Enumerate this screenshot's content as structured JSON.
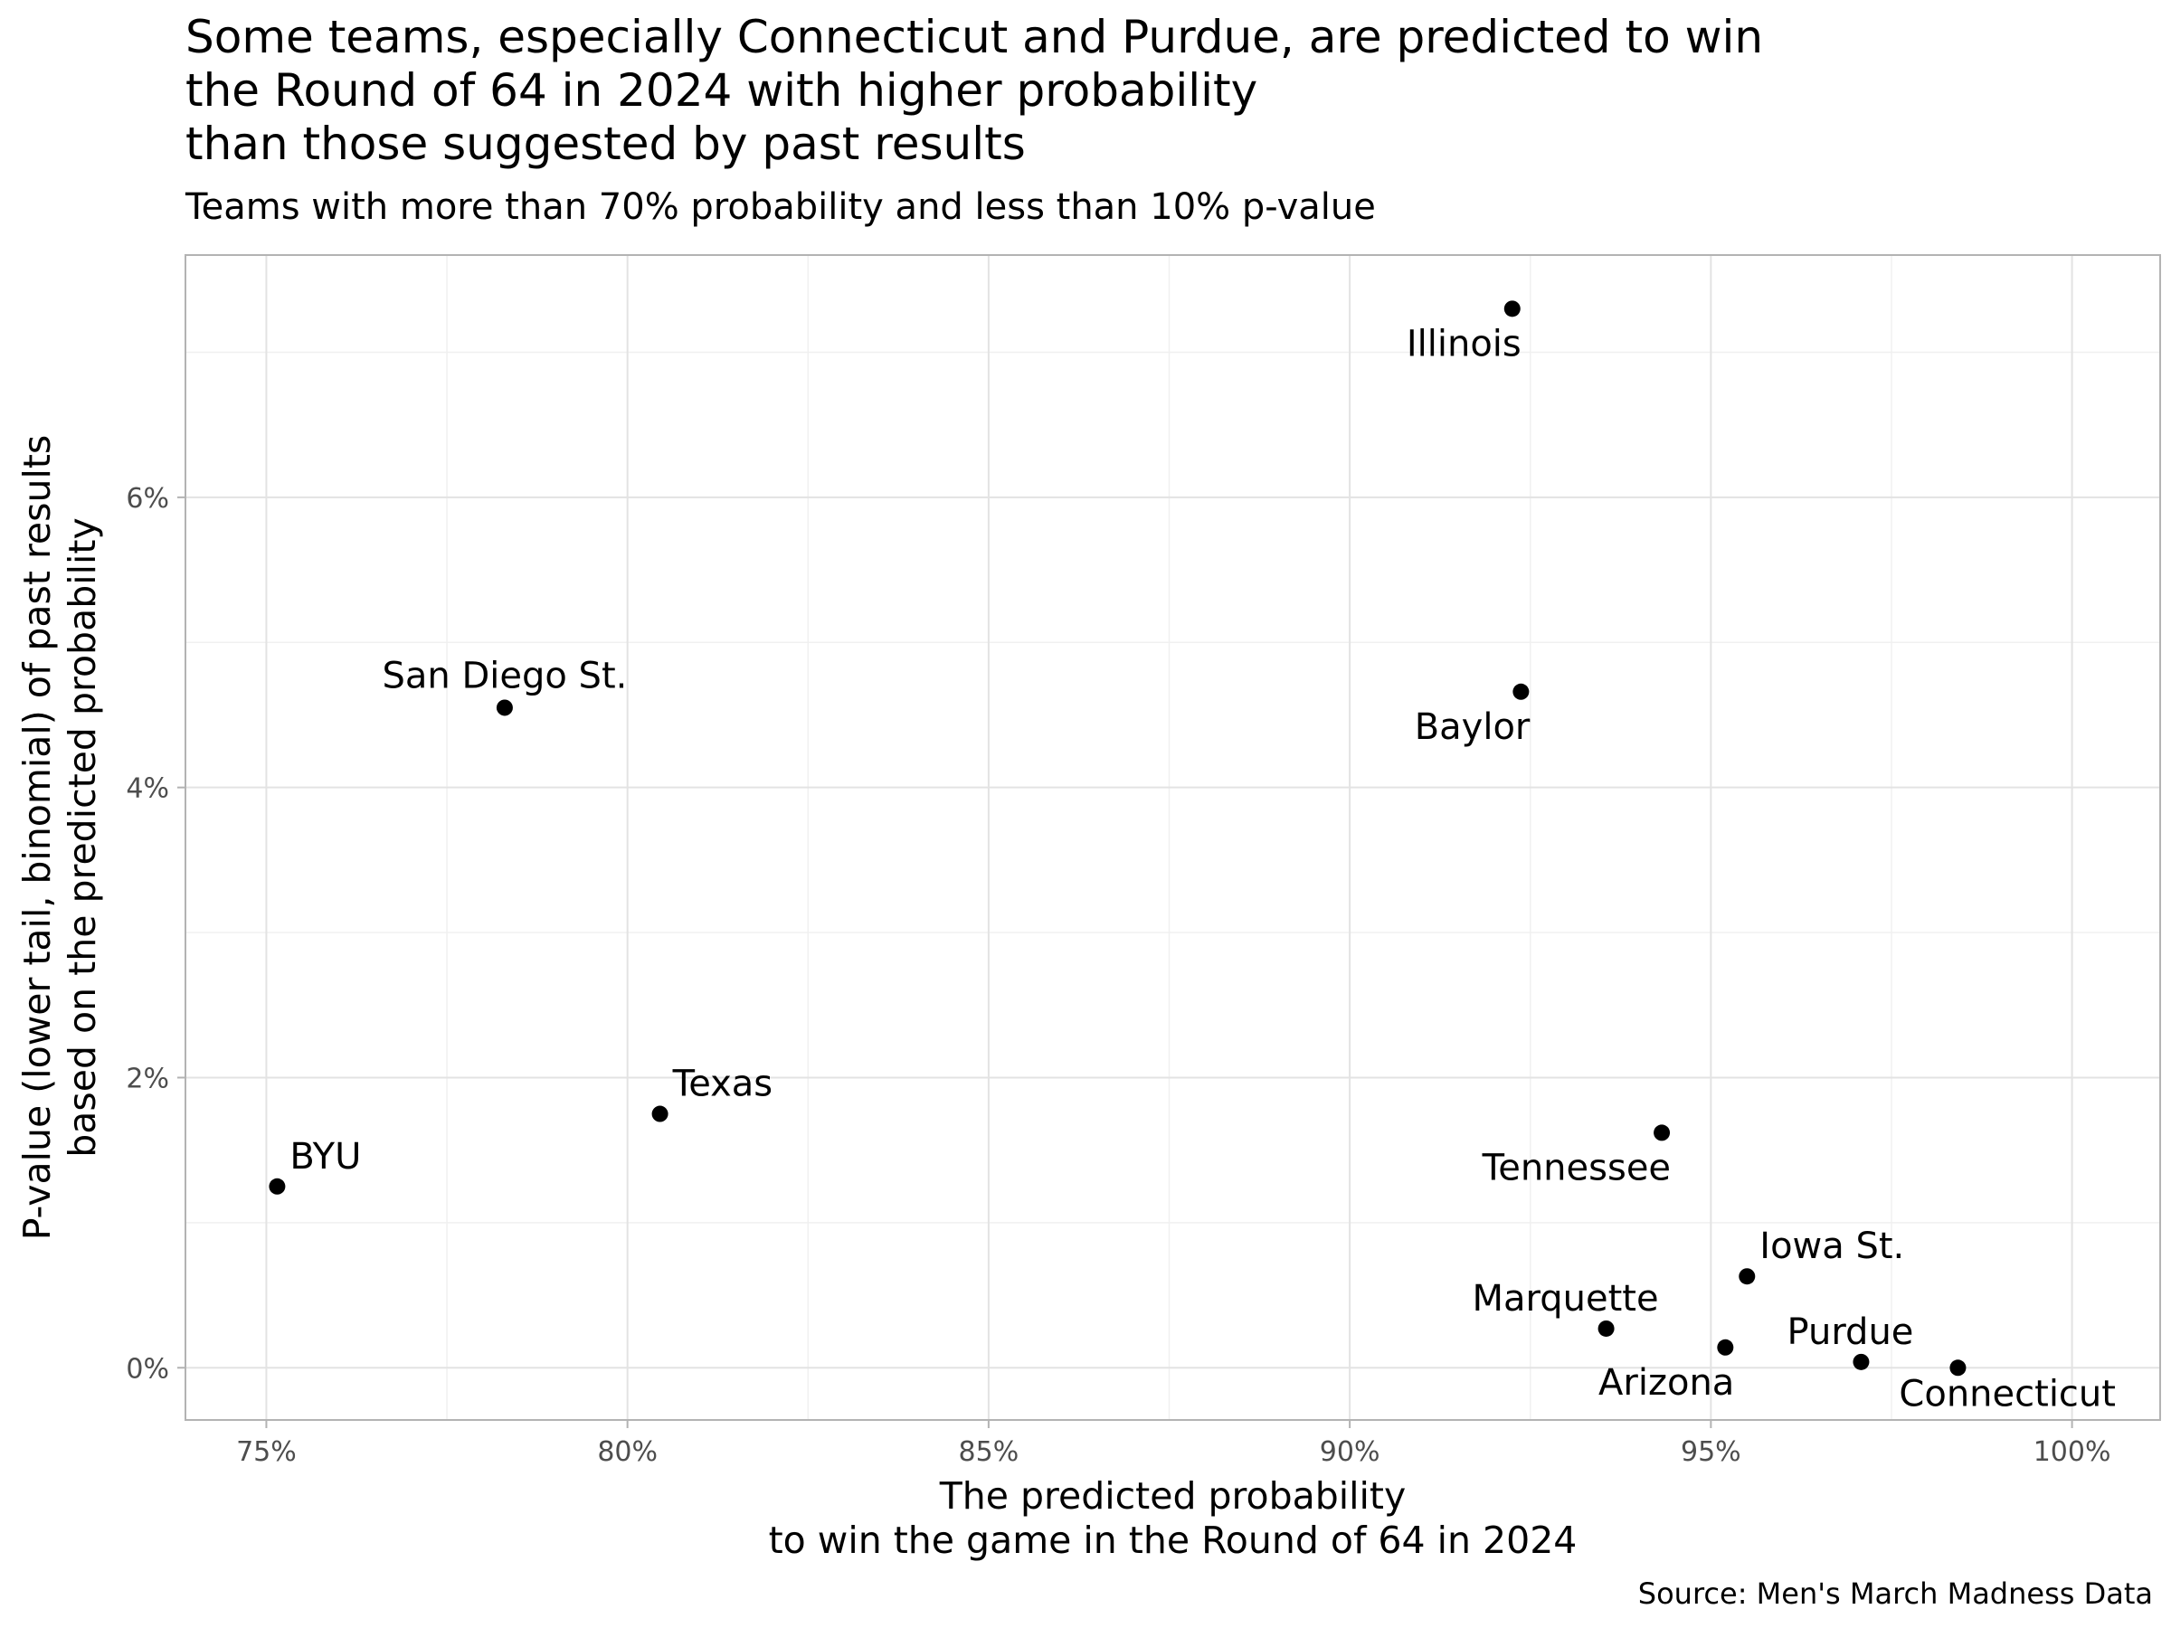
{
  "title": "Some teams, especially Connecticut and Purdue, are predicted to win\nthe Round of 64 in 2024 with higher probability\nthan those suggested by past results",
  "subtitle": "Teams with more than 70% probability and less than 10% p-value",
  "caption": "Source: Men's March Madness Data",
  "colors": {
    "point": "#000000",
    "grid_major": "#e3e3e3",
    "grid_minor": "#f0f0f0",
    "panel_border": "#b3b3b3",
    "tick_label": "#4d4d4d"
  },
  "chart_data": {
    "type": "scatter",
    "xlabel": [
      "The predicted probability",
      "to win the game in the Round of 64 in 2024"
    ],
    "ylabel": [
      "P-value (lower tail, binomial) of past results",
      "based on the predicted probability"
    ],
    "xlim": [
      0.7388,
      1.0122
    ],
    "ylim": [
      -0.0036,
      0.0767
    ],
    "x_ticks": [
      0.75,
      0.8,
      0.85,
      0.9,
      0.95,
      1.0
    ],
    "x_tick_labels": [
      "75%",
      "80%",
      "85%",
      "90%",
      "95%",
      "100%"
    ],
    "y_ticks": [
      0.0,
      0.02,
      0.04,
      0.06
    ],
    "y_tick_labels": [
      "0%",
      "2%",
      "4%",
      "6%"
    ],
    "grid": true,
    "points": [
      {
        "label": "Illinois",
        "x": 0.9225,
        "y": 0.073,
        "label_pos": "below-left"
      },
      {
        "label": "San Diego St.",
        "x": 0.783,
        "y": 0.0455,
        "label_pos": "above"
      },
      {
        "label": "Baylor",
        "x": 0.9237,
        "y": 0.0466,
        "label_pos": "below-left"
      },
      {
        "label": "Texas",
        "x": 0.8045,
        "y": 0.0175,
        "label_pos": "above-right"
      },
      {
        "label": "BYU",
        "x": 0.7515,
        "y": 0.0125,
        "label_pos": "above-right"
      },
      {
        "label": "Tennessee",
        "x": 0.9432,
        "y": 0.0162,
        "label_pos": "below-left"
      },
      {
        "label": "Iowa St.",
        "x": 0.955,
        "y": 0.0063,
        "label_pos": "above-right"
      },
      {
        "label": "Marquette",
        "x": 0.9355,
        "y": 0.0027,
        "label_pos": "above-left"
      },
      {
        "label": "Arizona",
        "x": 0.952,
        "y": 0.0014,
        "label_pos": "below-left"
      },
      {
        "label": "Purdue",
        "x": 0.9708,
        "y": 0.0004,
        "label_pos": "above-left"
      },
      {
        "label": "Connecticut",
        "x": 0.9842,
        "y": 0.0,
        "label_pos": "below-right"
      }
    ]
  }
}
